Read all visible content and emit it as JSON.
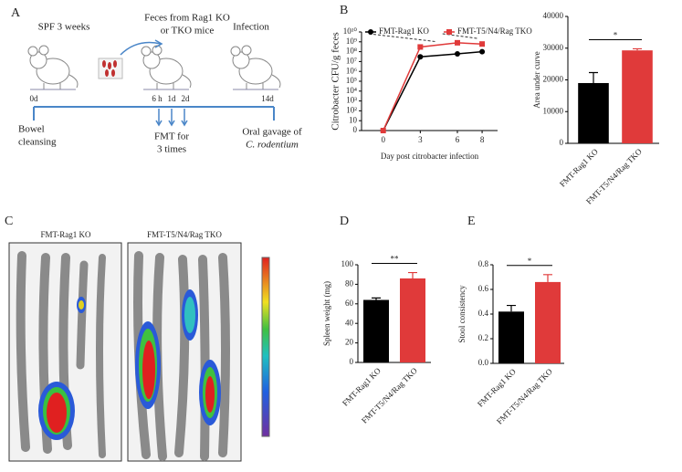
{
  "panel_a": {
    "label": "A",
    "sections": [
      "SPF 3 weeks",
      "Feces from Rag1 KO",
      "or TKO mice",
      "Infection"
    ],
    "timepoints": [
      "0d",
      "6 h",
      "1d",
      "2d",
      "14d"
    ],
    "notes": [
      "Bowel",
      "cleansing",
      "FMT for",
      "3 times",
      "Oral gavage of",
      "C. rodentium"
    ]
  },
  "panel_c": {
    "label": "C",
    "groups": [
      "FMT-Rag1 KO",
      "FMT-T5/N4/Rag TKO"
    ]
  },
  "chart_data": [
    {
      "type": "line",
      "panel": "B",
      "ylabel": "Citrobacter CFU/g feces",
      "xlabel": "Day post citrobacter infection",
      "x": [
        0,
        3,
        6,
        8
      ],
      "xlim": [
        -1.75,
        9.25
      ],
      "xticks": [
        0,
        3,
        6,
        8
      ],
      "yscale": "log",
      "ylim": [
        0,
        10000000000
      ],
      "yticks": [
        0,
        10,
        {
          "value": 100,
          "label": "10²"
        },
        {
          "value": 1000,
          "label": "10³"
        },
        {
          "value": 10000,
          "label": "10⁴"
        },
        {
          "value": 100000,
          "label": "10⁵"
        },
        {
          "value": 1000000,
          "label": "10⁶"
        },
        {
          "value": 10000000,
          "label": "10⁷"
        },
        {
          "value": 100000000,
          "label": "10⁸"
        },
        {
          "value": 1000000000,
          "label": "10⁹"
        },
        {
          "value": 10000000000,
          "label": "10¹⁰"
        }
      ],
      "legend": "top",
      "series": [
        {
          "name": "FMT-Rag1 KO",
          "color": "#000000",
          "marker": "circle",
          "values": [
            0,
            30000000,
            60000000,
            100000000
          ]
        },
        {
          "name": "FMT-T5/N4/Rag TKO",
          "color": "#e03a3a",
          "marker": "square",
          "values": [
            0,
            300000000,
            800000000,
            600000000
          ]
        }
      ]
    },
    {
      "type": "bar",
      "ylabel": "Area under curve",
      "categories": [
        "FMT-Rag1 KO",
        "FMT-T5/N4/Rag TKO"
      ],
      "values": [
        19000,
        29300
      ],
      "errors": [
        3300,
        500
      ],
      "colors": [
        "#000000",
        "#e03a3a"
      ],
      "ylim": [
        0,
        40000
      ],
      "yticks": [
        0,
        10000,
        20000,
        30000,
        40000
      ],
      "significance": "*"
    },
    {
      "type": "bar",
      "panel": "D",
      "ylabel": "Spleen weight (mg)",
      "categories": [
        "FMT-Rag1 KO",
        "FMT-T5/N4/Rag TKO"
      ],
      "values": [
        64,
        86
      ],
      "errors": [
        2,
        6
      ],
      "colors": [
        "#000000",
        "#e03a3a"
      ],
      "ylim": [
        0,
        100
      ],
      "yticks": [
        0,
        20,
        40,
        60,
        80,
        100
      ],
      "significance": "**"
    },
    {
      "type": "bar",
      "panel": "E",
      "ylabel": "Stool consistency",
      "categories": [
        "FMT-Rag1 KO",
        "FMT-T5/N4/Rag TKO"
      ],
      "values": [
        0.42,
        0.66
      ],
      "errors": [
        0.05,
        0.06
      ],
      "colors": [
        "#000000",
        "#e03a3a"
      ],
      "ylim": [
        0,
        0.8
      ],
      "yticks": [
        {
          "value": 0,
          "label": "0.0"
        },
        0.2,
        0.4,
        0.6,
        0.8
      ],
      "significance": "*"
    }
  ]
}
